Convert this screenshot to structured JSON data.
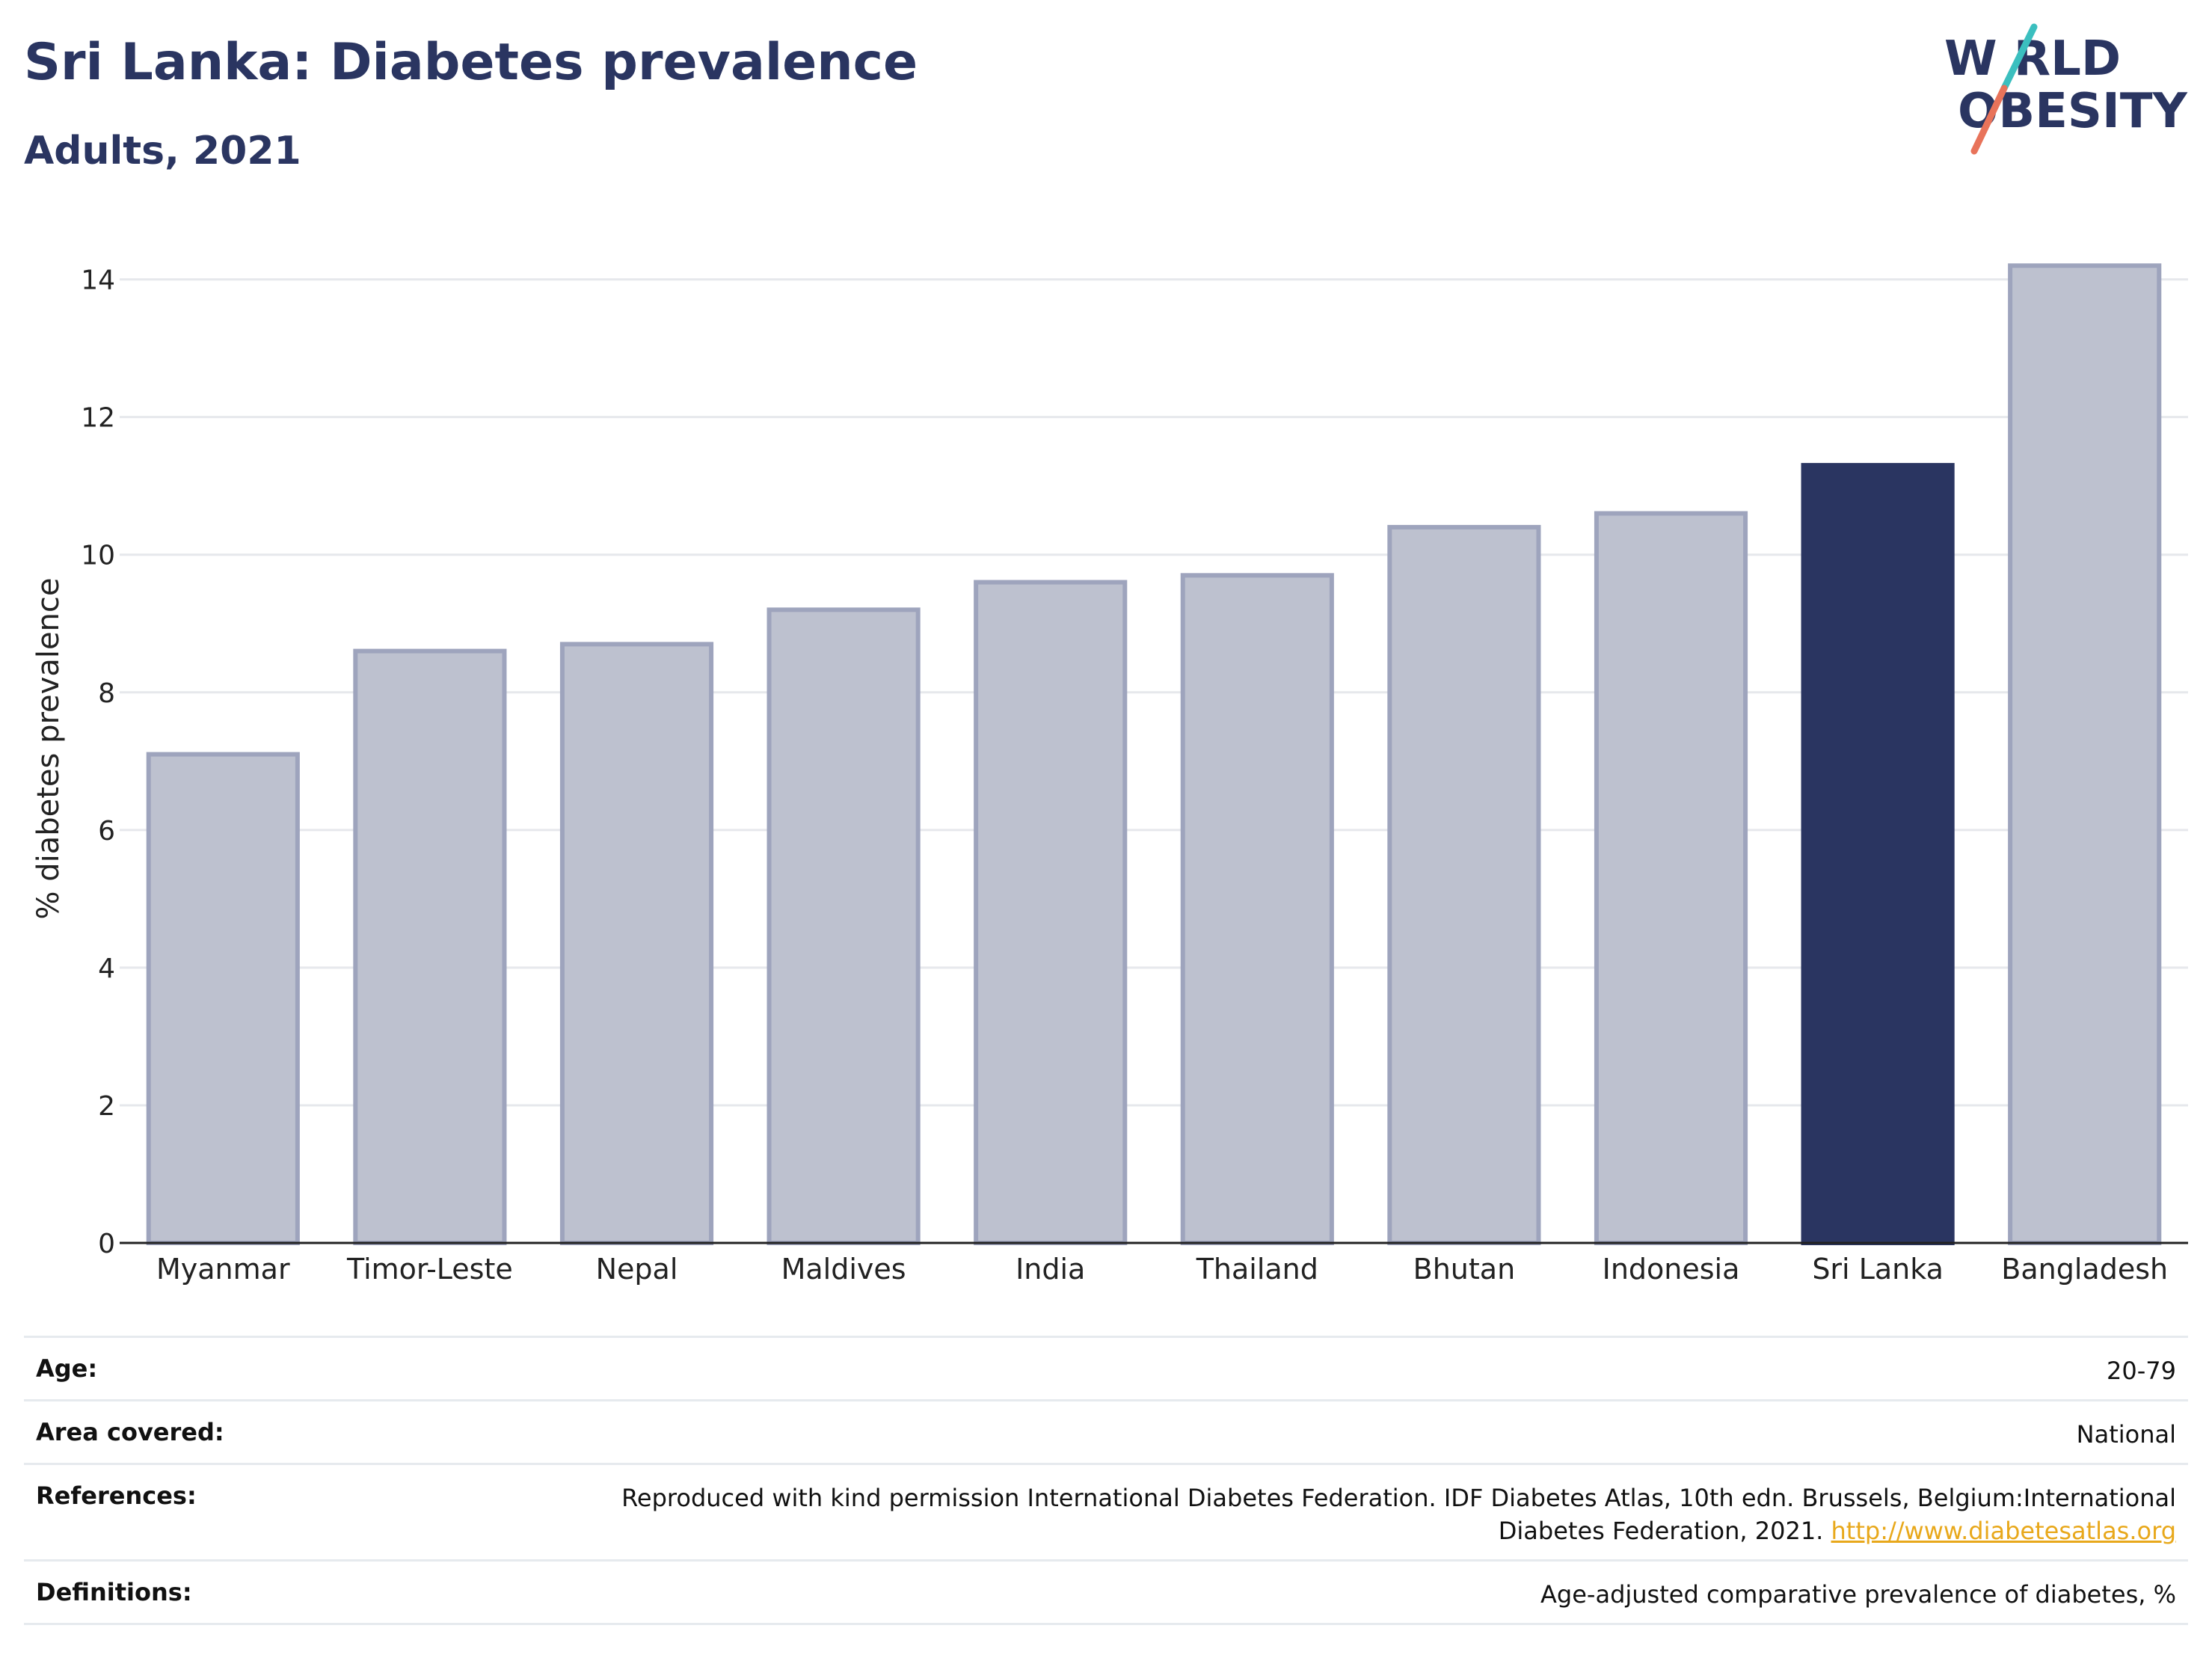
{
  "header": {
    "title": "Sri Lanka: Diabetes prevalence",
    "subtitle": "Adults, 2021"
  },
  "logo": {
    "line1": "W RLD",
    "line2": "OBESITY",
    "colors": {
      "text": "#2a3561",
      "slash_teal": "#3bbfbf",
      "slash_coral": "#e8735a"
    }
  },
  "colors": {
    "highlight_bar": "#2a3561",
    "other_bar_fill": "#bdc1cf",
    "other_bar_stroke": "#9ea4bd",
    "grid": "#e6e8ec",
    "axis": "#222222"
  },
  "chart_data": {
    "type": "bar",
    "categories": [
      "Myanmar",
      "Timor-Leste",
      "Nepal",
      "Maldives",
      "India",
      "Thailand",
      "Bhutan",
      "Indonesia",
      "Sri Lanka",
      "Bangladesh"
    ],
    "values": [
      7.1,
      8.6,
      8.7,
      9.2,
      9.6,
      9.7,
      10.4,
      10.6,
      11.3,
      14.2
    ],
    "highlight": "Sri Lanka",
    "ylabel": "% diabetes prevalence",
    "xlabel": "",
    "ylim": [
      0,
      14.8
    ],
    "yticks": [
      0,
      2,
      4,
      6,
      8,
      10,
      12,
      14
    ],
    "grid": true
  },
  "meta": {
    "rows": [
      {
        "label": "Age:",
        "value": "20-79"
      },
      {
        "label": "Area covered:",
        "value": "National"
      },
      {
        "label": "References:",
        "value": "Reproduced with kind permission International Diabetes Federation.  IDF Diabetes Atlas, 10th edn. Brussels, Belgium:International Diabetes Federation, 2021.",
        "link": "http://www.diabetesatlas.org"
      },
      {
        "label": "Definitions:",
        "value": "Age-adjusted comparative prevalence of diabetes, %"
      }
    ]
  }
}
